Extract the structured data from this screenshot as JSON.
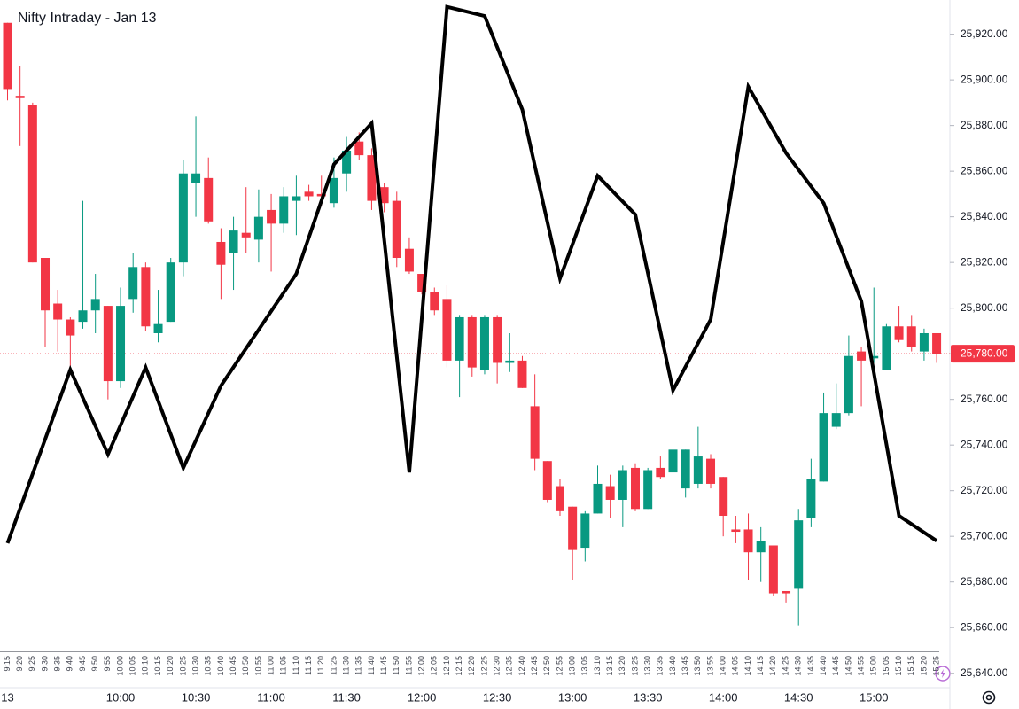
{
  "chart_data": {
    "type": "candlestick",
    "title": "Nifty Intraday - Jan 13",
    "categories": [
      "9:15",
      "9:20",
      "9:25",
      "9:30",
      "9:35",
      "9:40",
      "9:45",
      "9:50",
      "9:55",
      "10:00",
      "10:05",
      "10:10",
      "10:15",
      "10:20",
      "10:25",
      "10:30",
      "10:35",
      "10:40",
      "10:45",
      "10:50",
      "10:55",
      "11:00",
      "11:05",
      "11:10",
      "11:15",
      "11:20",
      "11:25",
      "11:30",
      "11:35",
      "11:40",
      "11:45",
      "11:50",
      "11:55",
      "12:00",
      "12:05",
      "12:10",
      "12:15",
      "12:20",
      "12:25",
      "12:30",
      "12:35",
      "12:40",
      "12:45",
      "12:50",
      "12:55",
      "13:00",
      "13:05",
      "13:10",
      "13:15",
      "13:20",
      "13:25",
      "13:30",
      "13:35",
      "13:40",
      "13:45",
      "13:50",
      "13:55",
      "14:00",
      "14:05",
      "14:10",
      "14:15",
      "14:20",
      "14:25",
      "14:30",
      "14:35",
      "14:40",
      "14:45",
      "14:50",
      "14:55",
      "15:00",
      "15:05",
      "15:10",
      "15:15",
      "15:20",
      "15:25"
    ],
    "open": [
      25925,
      25893,
      25889,
      25822,
      25802,
      25795,
      25794,
      25799,
      25801,
      25768,
      25804,
      25818,
      25789,
      25794,
      25820,
      25855,
      25857,
      25829,
      25824,
      25833,
      25830,
      25843,
      25837,
      25847,
      25851,
      25850,
      25846,
      25859,
      25873,
      25867,
      25853,
      25847,
      25826,
      25815,
      25807,
      25804,
      25777,
      25796,
      25773,
      25796,
      25776,
      25777,
      25757,
      25733,
      25722,
      25713,
      25695,
      25710,
      25722,
      25716,
      25730,
      25712,
      25730,
      25728,
      25721,
      25723,
      25734,
      25726,
      25703,
      25703,
      25693,
      25696,
      25676,
      25677,
      25708,
      25724,
      25748,
      25754,
      25781,
      25778,
      25773,
      25792,
      25792,
      25781,
      25789
    ],
    "high": [
      25925,
      25906,
      25890,
      25822,
      25808,
      25796,
      25847,
      25815,
      25801,
      25809,
      25824,
      25820,
      25808,
      25822,
      25865,
      25884,
      25866,
      25835,
      25840,
      25853,
      25852,
      25850,
      25853,
      25858,
      25854,
      25858,
      25866,
      25875,
      25877,
      25870,
      25855,
      25851,
      25831,
      25815,
      25809,
      25810,
      25797,
      25797,
      25797,
      25797,
      25789,
      25779,
      25771,
      25733,
      25725,
      25713,
      25711,
      25731,
      25727,
      25731,
      25732,
      25730,
      25735,
      25738,
      25738,
      25748,
      25736,
      25726,
      25709,
      25710,
      25704,
      25696,
      25676,
      25712,
      25734,
      25763,
      25767,
      25788,
      25783,
      25809,
      25793,
      25801,
      25797,
      25791,
      25789
    ],
    "low": [
      25891,
      25871,
      25820,
      25783,
      25781,
      25774,
      25791,
      25789,
      25760,
      25765,
      25798,
      25790,
      25785,
      25794,
      25814,
      25840,
      25837,
      25804,
      25808,
      25824,
      25820,
      25816,
      25833,
      25832,
      25847,
      25845,
      25844,
      25851,
      25865,
      25843,
      25842,
      25818,
      25815,
      25806,
      25797,
      25774,
      25761,
      25770,
      25771,
      25767,
      25772,
      25765,
      25729,
      25715,
      25709,
      25681,
      25689,
      25710,
      25708,
      25704,
      25711,
      25712,
      25725,
      25711,
      25717,
      25721,
      25721,
      25700,
      25697,
      25681,
      25680,
      25674,
      25671,
      25661,
      25704,
      25724,
      25747,
      25753,
      25757,
      25776,
      25773,
      25785,
      25781,
      25777,
      25776
    ],
    "close": [
      25896,
      25892,
      25820,
      25799,
      25795,
      25788,
      25799,
      25804,
      25768,
      25801,
      25818,
      25792,
      25793,
      25820,
      25859,
      25859,
      25838,
      25819,
      25834,
      25831,
      25840,
      25837,
      25849,
      25849,
      25849,
      25849,
      25857,
      25869,
      25867,
      25847,
      25846,
      25822,
      25816,
      25807,
      25799,
      25777,
      25796,
      25774,
      25796,
      25776,
      25777,
      25765,
      25734,
      25716,
      25711,
      25694,
      25710,
      25723,
      25716,
      25729,
      25712,
      25729,
      25726,
      25738,
      25738,
      25735,
      25723,
      25709,
      25702,
      25693,
      25698,
      25675,
      25675,
      25707,
      25725,
      25754,
      25754,
      25779,
      25777,
      25779,
      25792,
      25786,
      25783,
      25789,
      25780
    ],
    "up_color": "#089981",
    "down_color": "#f23645",
    "line": {
      "color": "#000000",
      "x": [
        "9:15",
        "9:40",
        "9:55",
        "10:10",
        "10:25",
        "10:40",
        "11:10",
        "11:25",
        "11:40",
        "11:55",
        "12:10",
        "12:25",
        "12:40",
        "12:55",
        "13:10",
        "13:25",
        "13:40",
        "13:55",
        "14:10",
        "14:25",
        "14:40",
        "14:55",
        "15:10",
        "15:25"
      ],
      "values": [
        25697,
        25773,
        25736,
        25774,
        25730,
        25766,
        25815,
        25863,
        25881,
        25728,
        25932,
        25928,
        25887,
        25813,
        25858,
        25841,
        25764,
        25795,
        25897,
        25868,
        25846,
        25803,
        25709,
        25698
      ]
    },
    "last_price": {
      "value": 25780,
      "label": "25,780.00"
    },
    "ylim": [
      25636,
      25935
    ],
    "yticks": [
      {
        "value": 25640,
        "label": "25,640.00"
      },
      {
        "value": 25660,
        "label": "25,660.00"
      },
      {
        "value": 25680,
        "label": "25,680.00"
      },
      {
        "value": 25700,
        "label": "25,700.00"
      },
      {
        "value": 25720,
        "label": "25,720.00"
      },
      {
        "value": 25740,
        "label": "25,740.00"
      },
      {
        "value": 25760,
        "label": "25,760.00"
      },
      {
        "value": 25780,
        "label": "25,780.00"
      },
      {
        "value": 25800,
        "label": "25,800.00"
      },
      {
        "value": 25820,
        "label": "25,820.00"
      },
      {
        "value": 25840,
        "label": "25,840.00"
      },
      {
        "value": 25860,
        "label": "25,860.00"
      },
      {
        "value": 25880,
        "label": "25,880.00"
      },
      {
        "value": 25900,
        "label": "25,900.00"
      },
      {
        "value": 25920,
        "label": "25,920.00"
      }
    ],
    "xticks": [
      "13",
      "10:00",
      "10:30",
      "11:00",
      "11:30",
      "12:00",
      "12:30",
      "13:00",
      "13:30",
      "14:00",
      "14:30",
      "15:00"
    ]
  }
}
